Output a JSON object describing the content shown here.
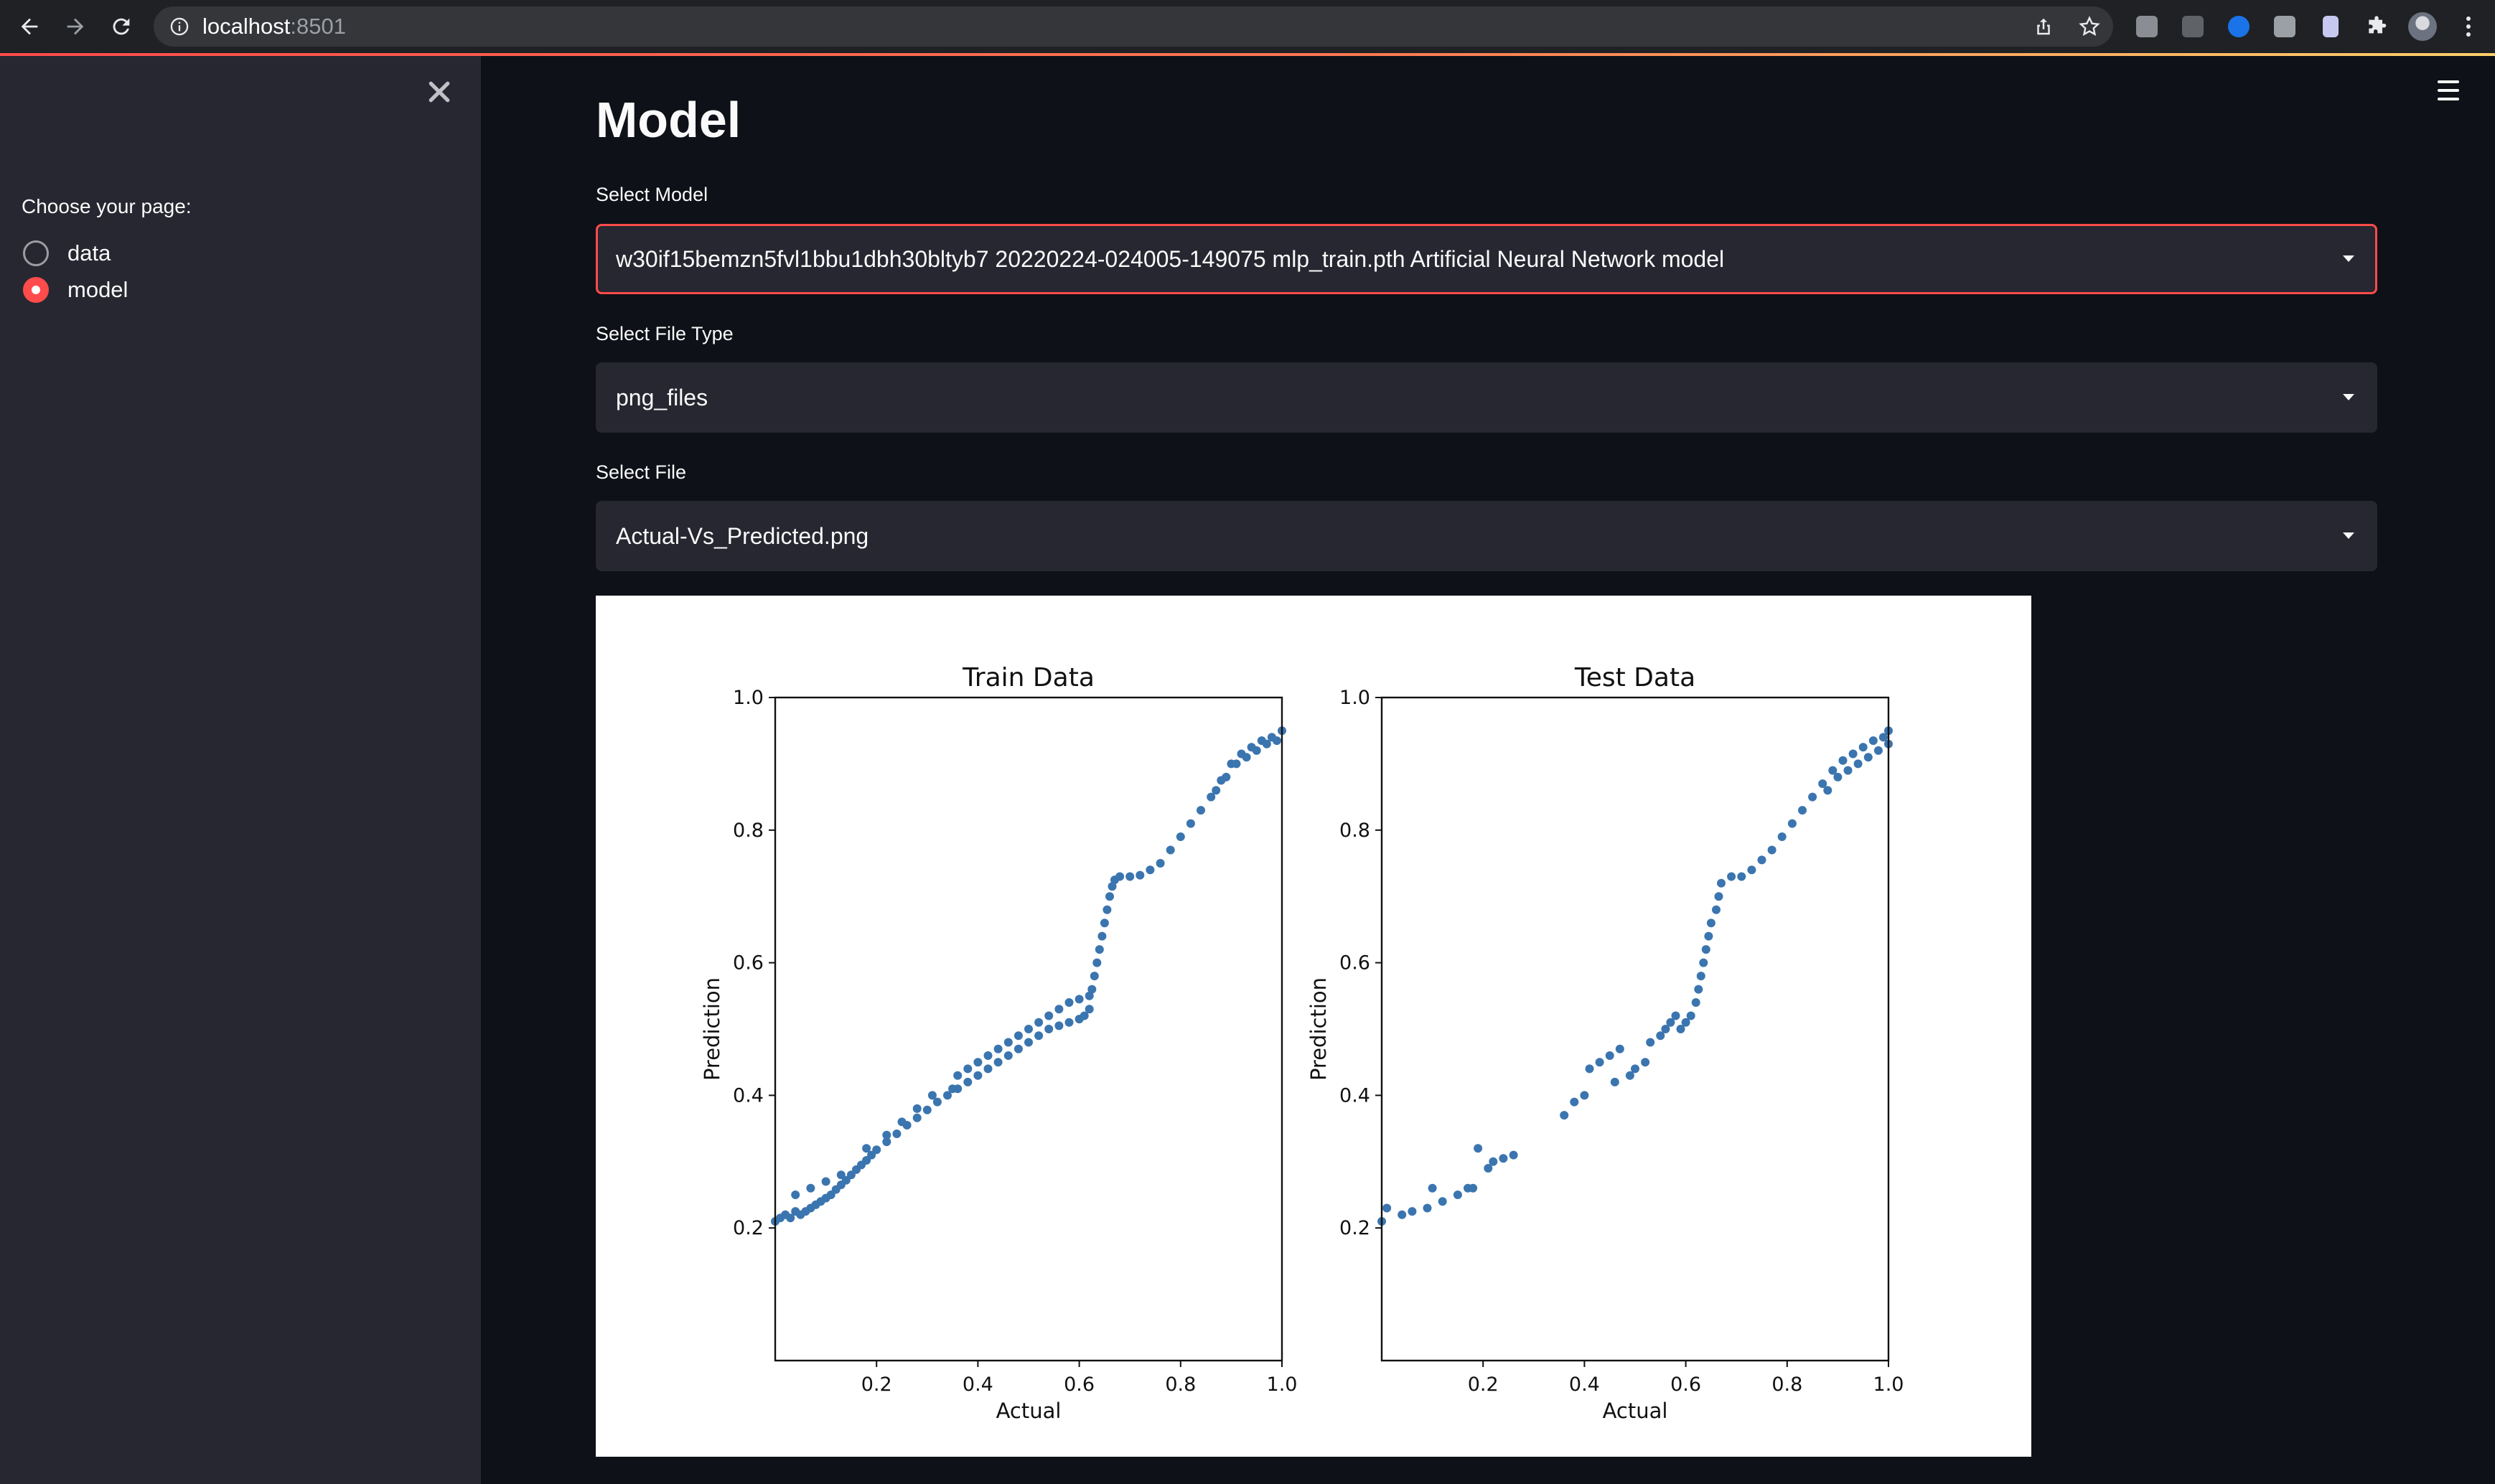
{
  "browser": {
    "url_host": "localhost",
    "url_port": ":8501",
    "toolbar_icons": [
      "share-icon",
      "star-icon",
      "extension-icon",
      "extension-icon",
      "svg-extension-icon",
      "extension-icon",
      "document-extension-icon",
      "puzzle-icon",
      "profile-avatar",
      "kebab-menu-icon"
    ]
  },
  "sidebar": {
    "radio_label": "Choose your page:",
    "options": [
      {
        "label": "data",
        "selected": false
      },
      {
        "label": "model",
        "selected": true
      }
    ]
  },
  "main": {
    "title": "Model",
    "select_model": {
      "label": "Select Model",
      "value": "w30if15bemzn5fvl1bbu1dbh30bltyb7 20220224-024005-149075 mlp_train.pth Artificial Neural Network model"
    },
    "select_file_type": {
      "label": "Select File Type",
      "value": "png_files"
    },
    "select_file": {
      "label": "Select File",
      "value": "Actual-Vs_Predicted.png"
    }
  },
  "colors": {
    "accent": "#ff4b4b",
    "background": "#0e1117",
    "sidebar": "#262730",
    "point": "#3b75af"
  },
  "chart_data": [
    {
      "type": "scatter",
      "title": "Train Data",
      "xlabel": "Actual",
      "ylabel": "Prediction",
      "xlim": [
        0.0,
        1.0
      ],
      "ylim": [
        0.0,
        1.0
      ],
      "xticks": [
        "0.2",
        "0.4",
        "0.6",
        "0.8",
        "1.0"
      ],
      "yticks": [
        "0.2",
        "0.4",
        "0.6",
        "0.8",
        "1.0"
      ],
      "grid": false,
      "points": [
        [
          0.0,
          0.21
        ],
        [
          0.01,
          0.215
        ],
        [
          0.02,
          0.22
        ],
        [
          0.03,
          0.215
        ],
        [
          0.04,
          0.225
        ],
        [
          0.05,
          0.22
        ],
        [
          0.06,
          0.225
        ],
        [
          0.07,
          0.23
        ],
        [
          0.08,
          0.235
        ],
        [
          0.09,
          0.24
        ],
        [
          0.1,
          0.245
        ],
        [
          0.11,
          0.25
        ],
        [
          0.12,
          0.258
        ],
        [
          0.13,
          0.265
        ],
        [
          0.14,
          0.272
        ],
        [
          0.15,
          0.28
        ],
        [
          0.16,
          0.288
        ],
        [
          0.17,
          0.295
        ],
        [
          0.18,
          0.302
        ],
        [
          0.19,
          0.31
        ],
        [
          0.2,
          0.318
        ],
        [
          0.22,
          0.33
        ],
        [
          0.24,
          0.342
        ],
        [
          0.26,
          0.355
        ],
        [
          0.28,
          0.366
        ],
        [
          0.3,
          0.378
        ],
        [
          0.32,
          0.39
        ],
        [
          0.34,
          0.4
        ],
        [
          0.36,
          0.41
        ],
        [
          0.38,
          0.42
        ],
        [
          0.4,
          0.43
        ],
        [
          0.42,
          0.44
        ],
        [
          0.44,
          0.45
        ],
        [
          0.46,
          0.46
        ],
        [
          0.48,
          0.47
        ],
        [
          0.5,
          0.48
        ],
        [
          0.52,
          0.49
        ],
        [
          0.54,
          0.5
        ],
        [
          0.56,
          0.505
        ],
        [
          0.58,
          0.51
        ],
        [
          0.6,
          0.515
        ],
        [
          0.61,
          0.52
        ],
        [
          0.62,
          0.53
        ],
        [
          0.36,
          0.43
        ],
        [
          0.38,
          0.44
        ],
        [
          0.4,
          0.45
        ],
        [
          0.42,
          0.46
        ],
        [
          0.44,
          0.47
        ],
        [
          0.46,
          0.48
        ],
        [
          0.48,
          0.49
        ],
        [
          0.5,
          0.5
        ],
        [
          0.52,
          0.51
        ],
        [
          0.54,
          0.52
        ],
        [
          0.56,
          0.53
        ],
        [
          0.58,
          0.54
        ],
        [
          0.6,
          0.545
        ],
        [
          0.62,
          0.55
        ],
        [
          0.04,
          0.25
        ],
        [
          0.07,
          0.26
        ],
        [
          0.1,
          0.27
        ],
        [
          0.13,
          0.28
        ],
        [
          0.18,
          0.32
        ],
        [
          0.22,
          0.34
        ],
        [
          0.25,
          0.36
        ],
        [
          0.28,
          0.38
        ],
        [
          0.31,
          0.4
        ],
        [
          0.35,
          0.41
        ],
        [
          0.625,
          0.56
        ],
        [
          0.63,
          0.58
        ],
        [
          0.635,
          0.6
        ],
        [
          0.64,
          0.62
        ],
        [
          0.645,
          0.64
        ],
        [
          0.65,
          0.66
        ],
        [
          0.655,
          0.68
        ],
        [
          0.66,
          0.7
        ],
        [
          0.665,
          0.715
        ],
        [
          0.67,
          0.725
        ],
        [
          0.68,
          0.73
        ],
        [
          0.7,
          0.73
        ],
        [
          0.72,
          0.732
        ],
        [
          0.74,
          0.74
        ],
        [
          0.76,
          0.75
        ],
        [
          0.78,
          0.77
        ],
        [
          0.8,
          0.79
        ],
        [
          0.82,
          0.81
        ],
        [
          0.84,
          0.83
        ],
        [
          0.86,
          0.85
        ],
        [
          0.88,
          0.875
        ],
        [
          0.9,
          0.9
        ],
        [
          0.92,
          0.915
        ],
        [
          0.94,
          0.925
        ],
        [
          0.96,
          0.935
        ],
        [
          0.98,
          0.94
        ],
        [
          1.0,
          0.95
        ],
        [
          0.87,
          0.86
        ],
        [
          0.89,
          0.88
        ],
        [
          0.91,
          0.9
        ],
        [
          0.93,
          0.91
        ],
        [
          0.95,
          0.92
        ],
        [
          0.97,
          0.93
        ],
        [
          0.99,
          0.935
        ]
      ]
    },
    {
      "type": "scatter",
      "title": "Test Data",
      "xlabel": "Actual",
      "ylabel": "Prediction",
      "xlim": [
        0.0,
        1.0
      ],
      "ylim": [
        0.0,
        1.0
      ],
      "xticks": [
        "0.2",
        "0.4",
        "0.6",
        "0.8",
        "1.0"
      ],
      "yticks": [
        "0.2",
        "0.4",
        "0.6",
        "0.8",
        "1.0"
      ],
      "grid": false,
      "points": [
        [
          0.0,
          0.21
        ],
        [
          0.01,
          0.23
        ],
        [
          0.04,
          0.22
        ],
        [
          0.06,
          0.225
        ],
        [
          0.09,
          0.23
        ],
        [
          0.1,
          0.26
        ],
        [
          0.12,
          0.24
        ],
        [
          0.15,
          0.25
        ],
        [
          0.17,
          0.26
        ],
        [
          0.18,
          0.26
        ],
        [
          0.19,
          0.32
        ],
        [
          0.21,
          0.29
        ],
        [
          0.22,
          0.3
        ],
        [
          0.24,
          0.305
        ],
        [
          0.26,
          0.31
        ],
        [
          0.36,
          0.37
        ],
        [
          0.38,
          0.39
        ],
        [
          0.4,
          0.4
        ],
        [
          0.41,
          0.44
        ],
        [
          0.43,
          0.45
        ],
        [
          0.45,
          0.46
        ],
        [
          0.46,
          0.42
        ],
        [
          0.47,
          0.47
        ],
        [
          0.49,
          0.43
        ],
        [
          0.5,
          0.44
        ],
        [
          0.52,
          0.45
        ],
        [
          0.53,
          0.48
        ],
        [
          0.55,
          0.49
        ],
        [
          0.56,
          0.5
        ],
        [
          0.57,
          0.51
        ],
        [
          0.58,
          0.52
        ],
        [
          0.59,
          0.5
        ],
        [
          0.6,
          0.51
        ],
        [
          0.61,
          0.52
        ],
        [
          0.62,
          0.54
        ],
        [
          0.625,
          0.56
        ],
        [
          0.63,
          0.58
        ],
        [
          0.635,
          0.6
        ],
        [
          0.64,
          0.62
        ],
        [
          0.645,
          0.64
        ],
        [
          0.65,
          0.66
        ],
        [
          0.66,
          0.68
        ],
        [
          0.665,
          0.7
        ],
        [
          0.67,
          0.72
        ],
        [
          0.69,
          0.73
        ],
        [
          0.71,
          0.73
        ],
        [
          0.73,
          0.74
        ],
        [
          0.75,
          0.755
        ],
        [
          0.77,
          0.77
        ],
        [
          0.79,
          0.79
        ],
        [
          0.81,
          0.81
        ],
        [
          0.83,
          0.83
        ],
        [
          0.85,
          0.85
        ],
        [
          0.87,
          0.87
        ],
        [
          0.89,
          0.89
        ],
        [
          0.91,
          0.905
        ],
        [
          0.93,
          0.915
        ],
        [
          0.95,
          0.925
        ],
        [
          0.97,
          0.935
        ],
        [
          0.99,
          0.94
        ],
        [
          1.0,
          0.95
        ],
        [
          0.88,
          0.86
        ],
        [
          0.9,
          0.88
        ],
        [
          0.92,
          0.89
        ],
        [
          0.94,
          0.9
        ],
        [
          0.96,
          0.91
        ],
        [
          0.98,
          0.92
        ],
        [
          1.0,
          0.93
        ]
      ]
    }
  ]
}
